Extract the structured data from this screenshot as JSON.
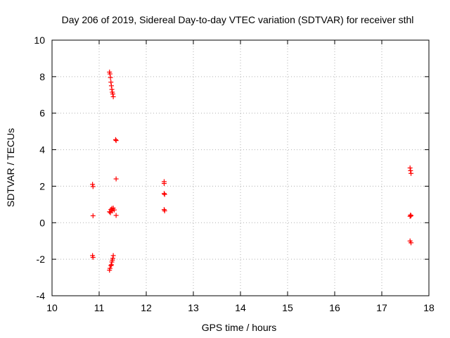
{
  "chart_data": {
    "type": "scatter",
    "title": "Day 206 of 2019, Sidereal Day-to-day VTEC variation (SDTVAR) for receiver sthl",
    "xlabel": "GPS time / hours",
    "ylabel": "SDTVAR / TECUs",
    "xlim": [
      10,
      18
    ],
    "ylim": [
      -4,
      10
    ],
    "xticks": [
      10,
      11,
      12,
      13,
      14,
      15,
      16,
      17,
      18
    ],
    "yticks": [
      -4,
      -2,
      0,
      2,
      4,
      6,
      8,
      10
    ],
    "xtick_labels": [
      "10",
      "11",
      "12",
      "13",
      "14",
      "15",
      "16",
      "17",
      "18"
    ],
    "ytick_labels": [
      "-4",
      "-2",
      "0",
      "2",
      "4",
      "6",
      "8",
      "10"
    ],
    "grid": true,
    "marker": "+",
    "marker_color": "#ff0000",
    "series": [
      {
        "name": "sthl",
        "points": [
          [
            10.86,
            2.1
          ],
          [
            10.87,
            1.98
          ],
          [
            10.87,
            0.38
          ],
          [
            10.86,
            -1.8
          ],
          [
            10.87,
            -1.9
          ],
          [
            11.22,
            8.25
          ],
          [
            11.23,
            8.15
          ],
          [
            11.24,
            7.95
          ],
          [
            11.25,
            7.7
          ],
          [
            11.26,
            7.5
          ],
          [
            11.27,
            7.3
          ],
          [
            11.28,
            7.15
          ],
          [
            11.29,
            7.05
          ],
          [
            11.3,
            6.9
          ],
          [
            11.35,
            4.55
          ],
          [
            11.36,
            4.5
          ],
          [
            11.36,
            2.4
          ],
          [
            11.22,
            0.6
          ],
          [
            11.24,
            0.55
          ],
          [
            11.25,
            0.72
          ],
          [
            11.27,
            0.78
          ],
          [
            11.28,
            0.65
          ],
          [
            11.3,
            0.8
          ],
          [
            11.32,
            0.7
          ],
          [
            11.36,
            0.4
          ],
          [
            11.22,
            -2.6
          ],
          [
            11.23,
            -2.5
          ],
          [
            11.25,
            -2.35
          ],
          [
            11.26,
            -2.3
          ],
          [
            11.27,
            -2.15
          ],
          [
            11.28,
            -2.05
          ],
          [
            11.29,
            -1.95
          ],
          [
            11.3,
            -1.8
          ],
          [
            12.38,
            2.25
          ],
          [
            12.38,
            2.15
          ],
          [
            12.38,
            1.6
          ],
          [
            12.39,
            1.55
          ],
          [
            12.38,
            0.72
          ],
          [
            12.39,
            0.65
          ],
          [
            17.6,
            3.0
          ],
          [
            17.61,
            2.85
          ],
          [
            17.62,
            2.7
          ],
          [
            17.6,
            0.35
          ],
          [
            17.61,
            0.42
          ],
          [
            17.62,
            0.38
          ],
          [
            17.6,
            -1.0
          ],
          [
            17.62,
            -1.1
          ]
        ]
      }
    ]
  }
}
